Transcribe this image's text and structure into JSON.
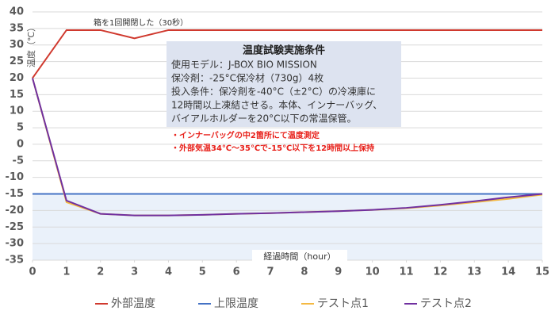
{
  "chart_data": {
    "type": "line",
    "y_label": "温度（℃）",
    "x_label": "経過時間（hour）",
    "annotation": "箱を1回開閉した（30秒）",
    "box_title": "温度試験実施条件",
    "box_lines": [
      "使用モデル：J-BOX BIO MISSION",
      "保冷剤：-25°C保冷材（730g）4枚",
      "投入条件：保冷剤を-40°C（±2°C）の冷凍庫に",
      "12時間以上凍結させる。本体、インナーバッグ、",
      "バイアルホルダーを20°C以下の常温保管。"
    ],
    "notes": [
      "・インナーバッグの中2箇所にて温度測定",
      "・外部気温34℃～35℃で-15℃以下を12時間以上保持"
    ],
    "x": [
      0,
      1,
      2,
      3,
      4,
      5,
      6,
      7,
      8,
      9,
      10,
      11,
      12,
      13,
      14,
      15
    ],
    "series": [
      {
        "name": "外部温度",
        "color": "#d0392e",
        "values": [
          20,
          34.5,
          34.5,
          32,
          34.5,
          34.5,
          34.5,
          34.5,
          34.5,
          34.5,
          34.5,
          34.5,
          34.5,
          34.5,
          34.5,
          34.5
        ]
      },
      {
        "name": "上限温度",
        "color": "#4472c4",
        "values": [
          -15,
          -15,
          -15,
          -15,
          -15,
          -15,
          -15,
          -15,
          -15,
          -15,
          -15,
          -15,
          -15,
          -15,
          -15,
          -15
        ]
      },
      {
        "name": "テスト点1",
        "color": "#f4b942",
        "values": [
          20,
          -17.5,
          -21,
          -21.5,
          -21.5,
          -21.3,
          -21,
          -20.8,
          -20.5,
          -20.2,
          -19.8,
          -19.3,
          -18.5,
          -17.5,
          -16.5,
          -15.2
        ]
      },
      {
        "name": "テスト点2",
        "color": "#7030a0",
        "values": [
          20,
          -17,
          -21,
          -21.5,
          -21.5,
          -21.3,
          -21,
          -20.8,
          -20.5,
          -20.2,
          -19.8,
          -19.2,
          -18.3,
          -17.2,
          -16,
          -15
        ]
      }
    ],
    "xlim": [
      0,
      15
    ],
    "xticks": [
      0,
      1,
      2,
      3,
      4,
      5,
      6,
      7,
      8,
      9,
      10,
      11,
      12,
      13,
      14,
      15
    ],
    "ylim": [
      -35,
      40
    ],
    "yticks": [
      -35,
      -30,
      -25,
      -20,
      -15,
      -10,
      -5,
      0,
      5,
      10,
      15,
      20,
      25,
      30,
      35,
      40
    ],
    "grid": true
  }
}
